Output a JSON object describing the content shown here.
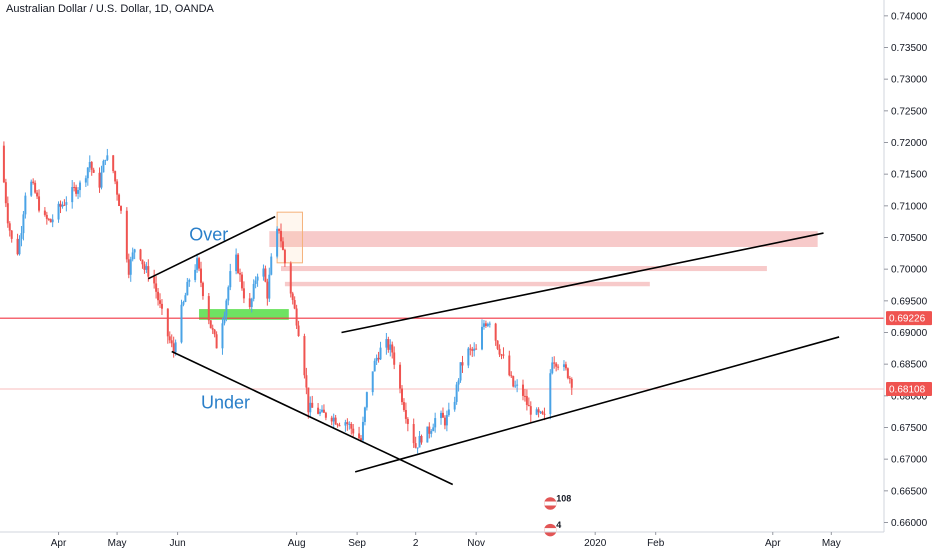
{
  "header": {
    "title": "Australian Dollar / U.S. Dollar, 1D, OANDA"
  },
  "colors": {
    "up": "#4aa3e6",
    "down": "#ef5350",
    "resistance_line": "#f23645",
    "zone_red": "#f4b8b8",
    "zone_green": "#66e05a",
    "price_tag": "#ef5350"
  },
  "chart_data": {
    "type": "candlestick",
    "instrument": "Australian Dollar / U.S. Dollar",
    "timeframe": "1D",
    "source": "OANDA",
    "y_axis": {
      "ticks": [
        "0.74000",
        "0.73500",
        "0.73000",
        "0.72500",
        "0.72000",
        "0.71500",
        "0.71000",
        "0.70500",
        "0.70000",
        "0.69500",
        "0.69000",
        "0.68500",
        "0.68000",
        "0.67500",
        "0.67000",
        "0.66500",
        "0.66000"
      ],
      "range": [
        0.6585,
        0.7425
      ]
    },
    "x_axis": {
      "ticks": [
        {
          "label": "Apr",
          "date": "2019-04-01"
        },
        {
          "label": "May",
          "date": "2019-05-01"
        },
        {
          "label": "Jun",
          "date": "2019-06-01"
        },
        {
          "label": "Aug",
          "date": "2019-08-01"
        },
        {
          "label": "Sep",
          "date": "2019-09-01"
        },
        {
          "label": "2",
          "date": "2019-10-01"
        },
        {
          "label": "Nov",
          "date": "2019-11-01"
        },
        {
          "label": "2020",
          "date": "2020-01-01"
        },
        {
          "label": "Feb",
          "date": "2020-02-01"
        },
        {
          "label": "Apr",
          "date": "2020-04-01"
        },
        {
          "label": "May",
          "date": "2020-05-01"
        }
      ],
      "range": [
        "2019-03-02",
        "2020-05-28"
      ]
    },
    "price_series": [
      [
        "2019-03-02",
        0.7195
      ],
      [
        "2019-03-06",
        0.708
      ],
      [
        "2019-03-10",
        0.701
      ],
      [
        "2019-03-13",
        0.7065
      ],
      [
        "2019-03-16",
        0.715
      ],
      [
        "2019-03-20",
        0.712
      ],
      [
        "2019-03-24",
        0.708
      ],
      [
        "2019-03-28",
        0.7075
      ],
      [
        "2019-04-01",
        0.7095
      ],
      [
        "2019-04-05",
        0.711
      ],
      [
        "2019-04-09",
        0.7125
      ],
      [
        "2019-04-13",
        0.7135
      ],
      [
        "2019-04-17",
        0.717
      ],
      [
        "2019-04-21",
        0.712
      ],
      [
        "2019-04-25",
        0.718
      ],
      [
        "2019-04-29",
        0.7155
      ],
      [
        "2019-05-03",
        0.709
      ],
      [
        "2019-05-07",
        0.7
      ],
      [
        "2019-05-11",
        0.7045
      ],
      [
        "2019-05-15",
        0.7
      ],
      [
        "2019-05-19",
        0.699
      ],
      [
        "2019-05-23",
        0.694
      ],
      [
        "2019-05-27",
        0.6895
      ],
      [
        "2019-05-30",
        0.687
      ],
      [
        "2019-06-01",
        0.6915
      ],
      [
        "2019-06-04",
        0.6945
      ],
      [
        "2019-06-07",
        0.6985
      ],
      [
        "2019-06-11",
        0.701
      ],
      [
        "2019-06-14",
        0.6965
      ],
      [
        "2019-06-18",
        0.691
      ],
      [
        "2019-06-21",
        0.688
      ],
      [
        "2019-06-25",
        0.6935
      ],
      [
        "2019-06-28",
        0.699
      ],
      [
        "2019-07-01",
        0.7015
      ],
      [
        "2019-07-05",
        0.696
      ],
      [
        "2019-07-08",
        0.6935
      ],
      [
        "2019-07-11",
        0.6985
      ],
      [
        "2019-07-14",
        0.7015
      ],
      [
        "2019-07-17",
        0.696
      ],
      [
        "2019-07-20",
        0.704
      ],
      [
        "2019-07-23",
        0.7065
      ],
      [
        "2019-07-26",
        0.701
      ],
      [
        "2019-07-29",
        0.6965
      ],
      [
        "2019-08-01",
        0.692
      ],
      [
        "2019-08-04",
        0.687
      ],
      [
        "2019-08-07",
        0.678
      ],
      [
        "2019-08-10",
        0.678
      ],
      [
        "2019-08-14",
        0.677
      ],
      [
        "2019-08-18",
        0.677
      ],
      [
        "2019-08-22",
        0.676
      ],
      [
        "2019-08-26",
        0.676
      ],
      [
        "2019-08-30",
        0.6745
      ],
      [
        "2019-09-03",
        0.673
      ],
      [
        "2019-09-07",
        0.6825
      ],
      [
        "2019-09-11",
        0.686
      ],
      [
        "2019-09-15",
        0.6885
      ],
      [
        "2019-09-19",
        0.687
      ],
      [
        "2019-09-23",
        0.681
      ],
      [
        "2019-09-27",
        0.676
      ],
      [
        "2019-10-01",
        0.672
      ],
      [
        "2019-10-04",
        0.6735
      ],
      [
        "2019-10-08",
        0.6745
      ],
      [
        "2019-10-12",
        0.677
      ],
      [
        "2019-10-16",
        0.676
      ],
      [
        "2019-10-20",
        0.678
      ],
      [
        "2019-10-24",
        0.6845
      ],
      [
        "2019-10-28",
        0.687
      ],
      [
        "2019-11-01",
        0.687
      ],
      [
        "2019-11-05",
        0.6915
      ],
      [
        "2019-11-08",
        0.692
      ],
      [
        "2019-11-12",
        0.688
      ],
      [
        "2019-11-16",
        0.685
      ],
      [
        "2019-11-20",
        0.6815
      ],
      [
        "2019-11-24",
        0.681
      ],
      [
        "2019-11-28",
        0.678
      ],
      [
        "2019-12-02",
        0.677
      ],
      [
        "2019-12-06",
        0.6765
      ],
      [
        "2019-12-10",
        0.686
      ],
      [
        "2019-12-14",
        0.685
      ],
      [
        "2019-12-18",
        0.6835
      ],
      [
        "2019-12-21",
        0.6815
      ]
    ],
    "horizontal_levels": [
      {
        "price": 0.69226,
        "label": "0.69226",
        "style": "resistance"
      },
      {
        "price": 0.68108,
        "label": "0.68108",
        "style": "last-price"
      }
    ],
    "zones": [
      {
        "color": "red",
        "from": "2019-07-18",
        "to": "2020-04-24",
        "top": 0.706,
        "bottom": 0.7035
      },
      {
        "color": "red",
        "from": "2019-07-24",
        "to": "2020-03-29",
        "top": 0.7005,
        "bottom": 0.6997
      },
      {
        "color": "red",
        "from": "2019-07-26",
        "to": "2020-01-29",
        "top": 0.698,
        "bottom": 0.6973
      },
      {
        "color": "green",
        "from": "2019-06-12",
        "to": "2019-07-28",
        "top": 0.6937,
        "bottom": 0.692
      },
      {
        "color": "orange-outline",
        "from": "2019-07-22",
        "to": "2019-08-04",
        "top": 0.709,
        "bottom": 0.701
      }
    ],
    "trend_lines": [
      {
        "from": [
          "2019-05-17",
          0.6985
        ],
        "to": [
          "2019-07-21",
          0.7083
        ]
      },
      {
        "from": [
          "2019-05-29",
          0.687
        ],
        "to": [
          "2019-10-20",
          0.666
        ]
      },
      {
        "from": [
          "2019-08-24",
          0.69
        ],
        "to": [
          "2020-04-27",
          0.7057
        ]
      },
      {
        "from": [
          "2019-08-31",
          0.668
        ],
        "to": [
          "2020-05-05",
          0.6893
        ]
      }
    ],
    "annotations": [
      {
        "text": "Over",
        "at": [
          "2019-06-07",
          0.7045
        ]
      },
      {
        "text": "Under",
        "at": [
          "2019-06-13",
          0.678
        ]
      }
    ],
    "badges": [
      {
        "text": "108",
        "at": [
          "2019-12-09",
          0.663
        ]
      },
      {
        "text": "4",
        "at": [
          "2019-12-09",
          0.6588
        ]
      }
    ]
  }
}
